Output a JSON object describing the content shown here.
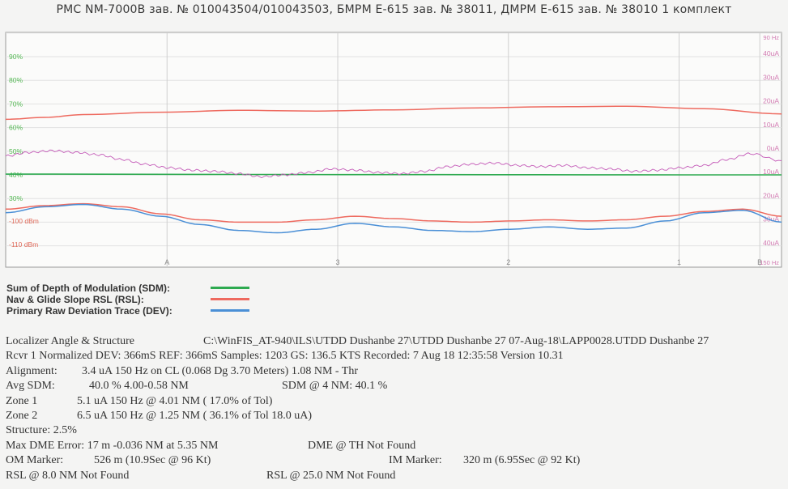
{
  "header": {
    "title": "РМС NM-7000В  зав. № 010043504/010043503, БМРМ  Е-615 зав. № 38011, ДМРМ Е-615 зав. № 38010 1 комплект"
  },
  "colors": {
    "sdm": "#2eaa50",
    "rsl": "#ee6a5f",
    "dev": "#4a8fd6",
    "dev_raw": "#c45ab8",
    "left_percent_axis": "#52b852",
    "left_dbm_axis": "#e06a5a",
    "right_ua_axis": "#d27ab2"
  },
  "chart_data": {
    "type": "line",
    "grid": true,
    "left_axis_percent": {
      "ticks": [
        {
          "label": "90%",
          "value": 90
        },
        {
          "label": "80%",
          "value": 80
        },
        {
          "label": "70%",
          "value": 70
        },
        {
          "label": "60%",
          "value": 60
        },
        {
          "label": "50%",
          "value": 50
        },
        {
          "label": "40%",
          "value": 40
        },
        {
          "label": "30%",
          "value": 30
        }
      ]
    },
    "left_axis_dbm": {
      "ticks": [
        {
          "label": "-100 dBm",
          "value": -100
        },
        {
          "label": "-110 dBm",
          "value": -110
        }
      ]
    },
    "right_axis_ua": {
      "top_label": "90 Hz",
      "bottom_label": "150 Hz",
      "ticks": [
        {
          "label": "40uA",
          "value": 40
        },
        {
          "label": "30uA",
          "value": 30
        },
        {
          "label": "20uA",
          "value": 20
        },
        {
          "label": "10uA",
          "value": 10
        },
        {
          "label": "0uA",
          "value": 0
        },
        {
          "label": "10uA",
          "value": -10
        },
        {
          "label": "20uA",
          "value": -20
        },
        {
          "label": "30uA",
          "value": -30
        },
        {
          "label": "40uA",
          "value": -40
        }
      ]
    },
    "x_markers": [
      "A",
      "3",
      "2",
      "1",
      "B"
    ],
    "series": [
      {
        "key": "sdm",
        "axis": "percent",
        "x": [
          0,
          0.5,
          1
        ],
        "values": [
          40.3,
          40.1,
          40.0
        ]
      },
      {
        "key": "rsl",
        "axis": "percent",
        "x": [
          0,
          0.05,
          0.1,
          0.2,
          0.3,
          0.4,
          0.5,
          0.6,
          0.7,
          0.8,
          0.9,
          1.0
        ],
        "values": [
          63.5,
          64.3,
          65.5,
          66.5,
          67.3,
          67.0,
          67.5,
          68.3,
          68.8,
          69.0,
          68.0,
          65.8
        ]
      },
      {
        "key": "dev_raw",
        "axis": "percent",
        "x": [
          0,
          0.03,
          0.06,
          0.09,
          0.12,
          0.15,
          0.18,
          0.21,
          0.24,
          0.27,
          0.3,
          0.33,
          0.36,
          0.39,
          0.42,
          0.45,
          0.48,
          0.51,
          0.54,
          0.57,
          0.6,
          0.63,
          0.66,
          0.69,
          0.72,
          0.75,
          0.78,
          0.81,
          0.84,
          0.87,
          0.9,
          0.93,
          0.96,
          1.0
        ],
        "values": [
          48.0,
          49.5,
          50.2,
          49.5,
          48.5,
          46.5,
          44.5,
          43.0,
          42.0,
          41.5,
          40.5,
          39.2,
          40.0,
          41.0,
          42.5,
          42.0,
          41.0,
          40.5,
          41.5,
          43.5,
          44.5,
          45.0,
          44.0,
          43.5,
          44.0,
          43.0,
          42.5,
          41.5,
          42.0,
          43.0,
          44.0,
          46.5,
          49.0,
          46.0
        ]
      },
      {
        "key": "rsl_low",
        "axis": "percent",
        "x": [
          0,
          0.05,
          0.1,
          0.15,
          0.2,
          0.25,
          0.3,
          0.35,
          0.4,
          0.45,
          0.5,
          0.55,
          0.6,
          0.65,
          0.7,
          0.75,
          0.8,
          0.85,
          0.9,
          0.95,
          1.0
        ],
        "values": [
          25.5,
          27.0,
          27.8,
          26.5,
          23.5,
          21.0,
          20.0,
          20.0,
          21.0,
          22.5,
          21.5,
          20.5,
          20.0,
          20.5,
          21.0,
          20.5,
          21.0,
          22.5,
          24.5,
          25.5,
          22.5
        ]
      },
      {
        "key": "dev",
        "axis": "percent",
        "x": [
          0,
          0.05,
          0.1,
          0.15,
          0.2,
          0.25,
          0.3,
          0.35,
          0.4,
          0.45,
          0.5,
          0.55,
          0.6,
          0.65,
          0.7,
          0.75,
          0.8,
          0.85,
          0.9,
          0.95,
          1.0
        ],
        "values": [
          24.0,
          26.5,
          27.5,
          25.5,
          22.5,
          19.0,
          16.5,
          15.5,
          17.0,
          19.5,
          18.0,
          16.5,
          16.0,
          17.0,
          18.0,
          17.0,
          17.5,
          20.5,
          24.0,
          25.0,
          20.0
        ]
      }
    ]
  },
  "legend": {
    "items": [
      {
        "key": "sdm",
        "label": "Sum of Depth of Modulation (SDM):"
      },
      {
        "key": "rsl",
        "label": "Nav & Glide Slope RSL (RSL):"
      },
      {
        "key": "dev",
        "label": "Primary Raw Deviation Trace (DEV):"
      }
    ]
  },
  "report": {
    "line1_a": "Localizer Angle & Structure",
    "line1_b": "C:\\WinFIS_AT-940\\ILS\\UTDD Dushanbe 27\\UTDD Dushanbe 27 07-Aug-18\\LAPP0028.UTDD Dushanbe 27",
    "line2": "Rcvr 1 Normalized  DEV: 366mS REF: 366mS Samples: 1203 GS: 136.5 KTS  Recorded: 7 Aug 18 12:35:58 Version 10.31",
    "alignment_label": "Alignment:",
    "alignment_value": "3.4 uA 150 Hz on CL (0.068 Dg  3.70 Meters) 1.08 NM - Thr",
    "avg_sdm_label": "Avg SDM:",
    "avg_sdm_value": "40.0 % 4.00-0.58 NM",
    "sdm4_value": "SDM @ 4 NM: 40.1 %",
    "zone1_label": "Zone 1",
    "zone1_value": "5.1 uA 150 Hz @  4.01 NM ( 17.0% of Tol)",
    "zone2_label": "Zone 2",
    "zone2_value": "6.5 uA 150 Hz @  1.25 NM ( 36.1% of Tol 18.0 uA)",
    "structure": "Structure: 2.5%",
    "max_dme": "Max DME Error: 17 m -0.036 NM at 5.35 NM",
    "dme_th": "DME @ TH Not Found",
    "om_label": "OM Marker:",
    "om_value": "526 m (10.9Sec @ 96 Kt)",
    "im_label": "IM Marker:",
    "im_value": "320 m (6.95Sec @ 92 Kt)",
    "rsl8": "RSL @ 8.0 NM Not Found",
    "rsl25": "RSL @ 25.0 NM Not Found"
  }
}
